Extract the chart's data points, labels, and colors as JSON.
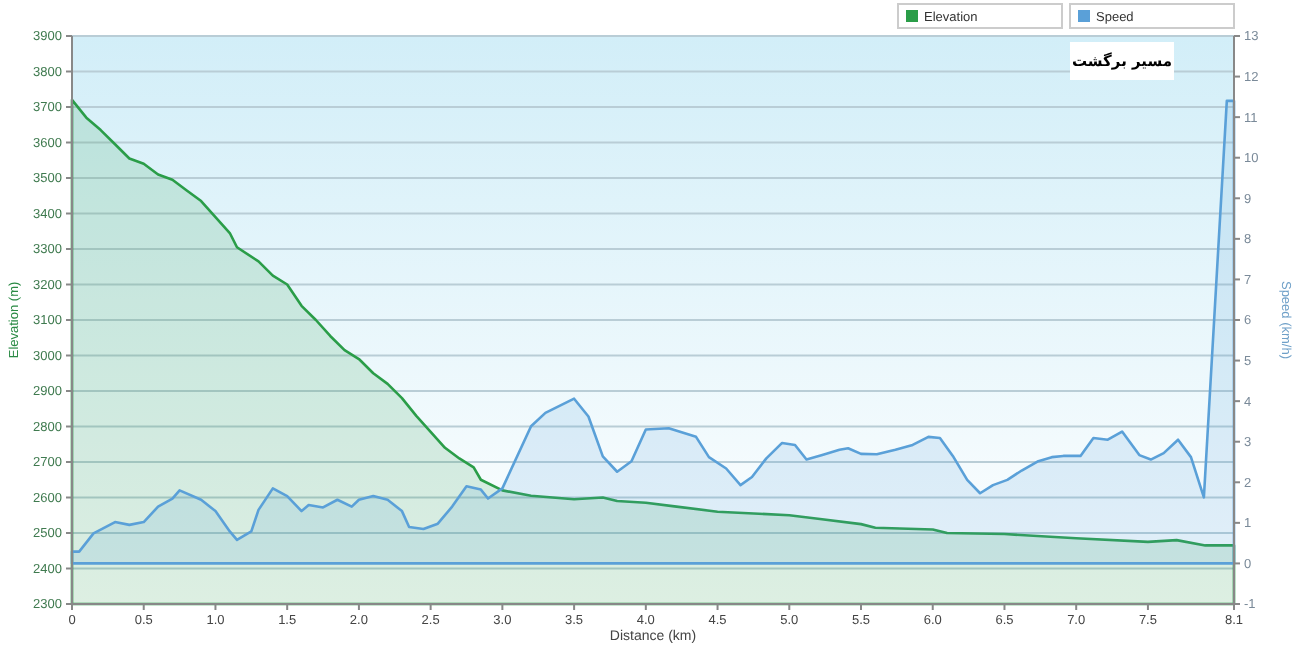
{
  "chart_data": {
    "type": "area",
    "xlabel": "Distance (km)",
    "ylabel": "Elevation (m)",
    "y2label": "Speed (km/h)",
    "annotations": [
      "مسیر برگشت"
    ],
    "xlim": [
      0,
      8.1
    ],
    "xticks": [
      0,
      {
        "value": 0.5,
        "label": "0.5"
      },
      {
        "value": 1,
        "label": "1.0"
      },
      1.5,
      {
        "value": 2,
        "label": "2.0"
      },
      2.5,
      {
        "value": 3,
        "label": "3.0"
      },
      3.5,
      {
        "value": 4,
        "label": "4.0"
      },
      4.5,
      {
        "value": 5,
        "label": "5.0"
      },
      5.5,
      {
        "value": 6,
        "label": "6.0"
      },
      6.5,
      {
        "value": 7,
        "label": "7.0"
      },
      7.5,
      8.1
    ],
    "ylim": [
      2300,
      3900
    ],
    "yticks": [
      2300,
      2400,
      2500,
      2600,
      2700,
      2800,
      2900,
      3000,
      3100,
      3200,
      3300,
      3400,
      3500,
      3600,
      3700,
      3800,
      3900
    ],
    "y2lim": [
      -1,
      13
    ],
    "y2ticks": [
      -1,
      0,
      1,
      2,
      3,
      4,
      5,
      6,
      7,
      8,
      9,
      10,
      11,
      12,
      13
    ],
    "grid": "y",
    "legend": "top right",
    "series": [
      {
        "name": "Elevation",
        "color": "#2a9d48",
        "x": [
          0,
          0.1,
          0.2,
          0.3,
          0.4,
          0.5,
          0.6,
          0.7,
          0.8,
          0.9,
          1.0,
          1.1,
          1.15,
          1.3,
          1.4,
          1.5,
          1.6,
          1.7,
          1.8,
          1.9,
          2.0,
          2.1,
          2.2,
          2.3,
          2.4,
          2.5,
          2.6,
          2.7,
          2.8,
          2.85,
          3.0,
          3.2,
          3.5,
          3.7,
          3.8,
          4.0,
          4.2,
          4.5,
          5.0,
          5.2,
          5.5,
          5.6,
          6.0,
          6.1,
          6.5,
          7.0,
          7.5,
          7.7,
          7.9,
          8.1
        ],
        "values": [
          3720,
          3670,
          3635,
          3595,
          3555,
          3540,
          3510,
          3495,
          3465,
          3435,
          3390,
          3345,
          3305,
          3265,
          3225,
          3200,
          3140,
          3100,
          3055,
          3015,
          2990,
          2950,
          2920,
          2880,
          2830,
          2785,
          2740,
          2710,
          2685,
          2650,
          2620,
          2605,
          2595,
          2600,
          2590,
          2585,
          2575,
          2560,
          2550,
          2540,
          2525,
          2515,
          2510,
          2500,
          2497,
          2485,
          2475,
          2480,
          2465,
          2465
        ]
      },
      {
        "name": "Speed",
        "color": "#5aa0d8",
        "axis": "y2",
        "x": [
          0,
          0.05,
          0.15,
          0.3,
          0.4,
          0.5,
          0.6,
          0.7,
          0.75,
          0.9,
          1.0,
          1.1,
          1.15,
          1.25,
          1.3,
          1.4,
          1.5,
          1.6,
          1.65,
          1.75,
          1.85,
          1.95,
          2.0,
          2.1,
          2.2,
          2.3,
          2.35,
          2.45,
          2.55,
          2.65,
          2.75,
          2.85,
          2.9,
          3.0,
          3.2,
          3.3,
          3.5,
          3.6,
          3.7,
          3.8,
          3.9,
          4.0,
          4.16,
          4.35,
          4.44,
          4.56,
          4.66,
          4.74,
          4.84,
          4.95,
          5.04,
          5.12,
          5.23,
          5.35,
          5.41,
          5.5,
          5.61,
          5.74,
          5.86,
          5.97,
          6.05,
          6.14,
          6.24,
          6.33,
          6.42,
          6.52,
          6.62,
          6.73,
          6.83,
          6.91,
          7.03,
          7.12,
          7.22,
          7.32,
          7.44,
          7.52,
          7.61,
          7.71,
          7.8,
          7.89,
          8.05,
          8.1
        ],
        "values": [
          0.29,
          0.29,
          0.74,
          1.02,
          0.95,
          1.02,
          1.4,
          1.6,
          1.8,
          1.57,
          1.29,
          0.79,
          0.58,
          0.79,
          1.32,
          1.85,
          1.66,
          1.29,
          1.44,
          1.38,
          1.57,
          1.4,
          1.57,
          1.66,
          1.57,
          1.29,
          0.9,
          0.85,
          0.98,
          1.4,
          1.9,
          1.82,
          1.6,
          1.85,
          3.38,
          3.71,
          4.06,
          3.62,
          2.64,
          2.26,
          2.52,
          3.3,
          3.33,
          3.12,
          2.62,
          2.34,
          1.93,
          2.13,
          2.59,
          2.97,
          2.92,
          2.56,
          2.67,
          2.8,
          2.84,
          2.7,
          2.69,
          2.8,
          2.92,
          3.12,
          3.09,
          2.65,
          2.06,
          1.73,
          1.93,
          2.06,
          2.29,
          2.51,
          2.62,
          2.65,
          2.65,
          3.09,
          3.05,
          3.25,
          2.67,
          2.56,
          2.72,
          3.05,
          2.62,
          1.63,
          11.4,
          11.4
        ]
      }
    ]
  }
}
